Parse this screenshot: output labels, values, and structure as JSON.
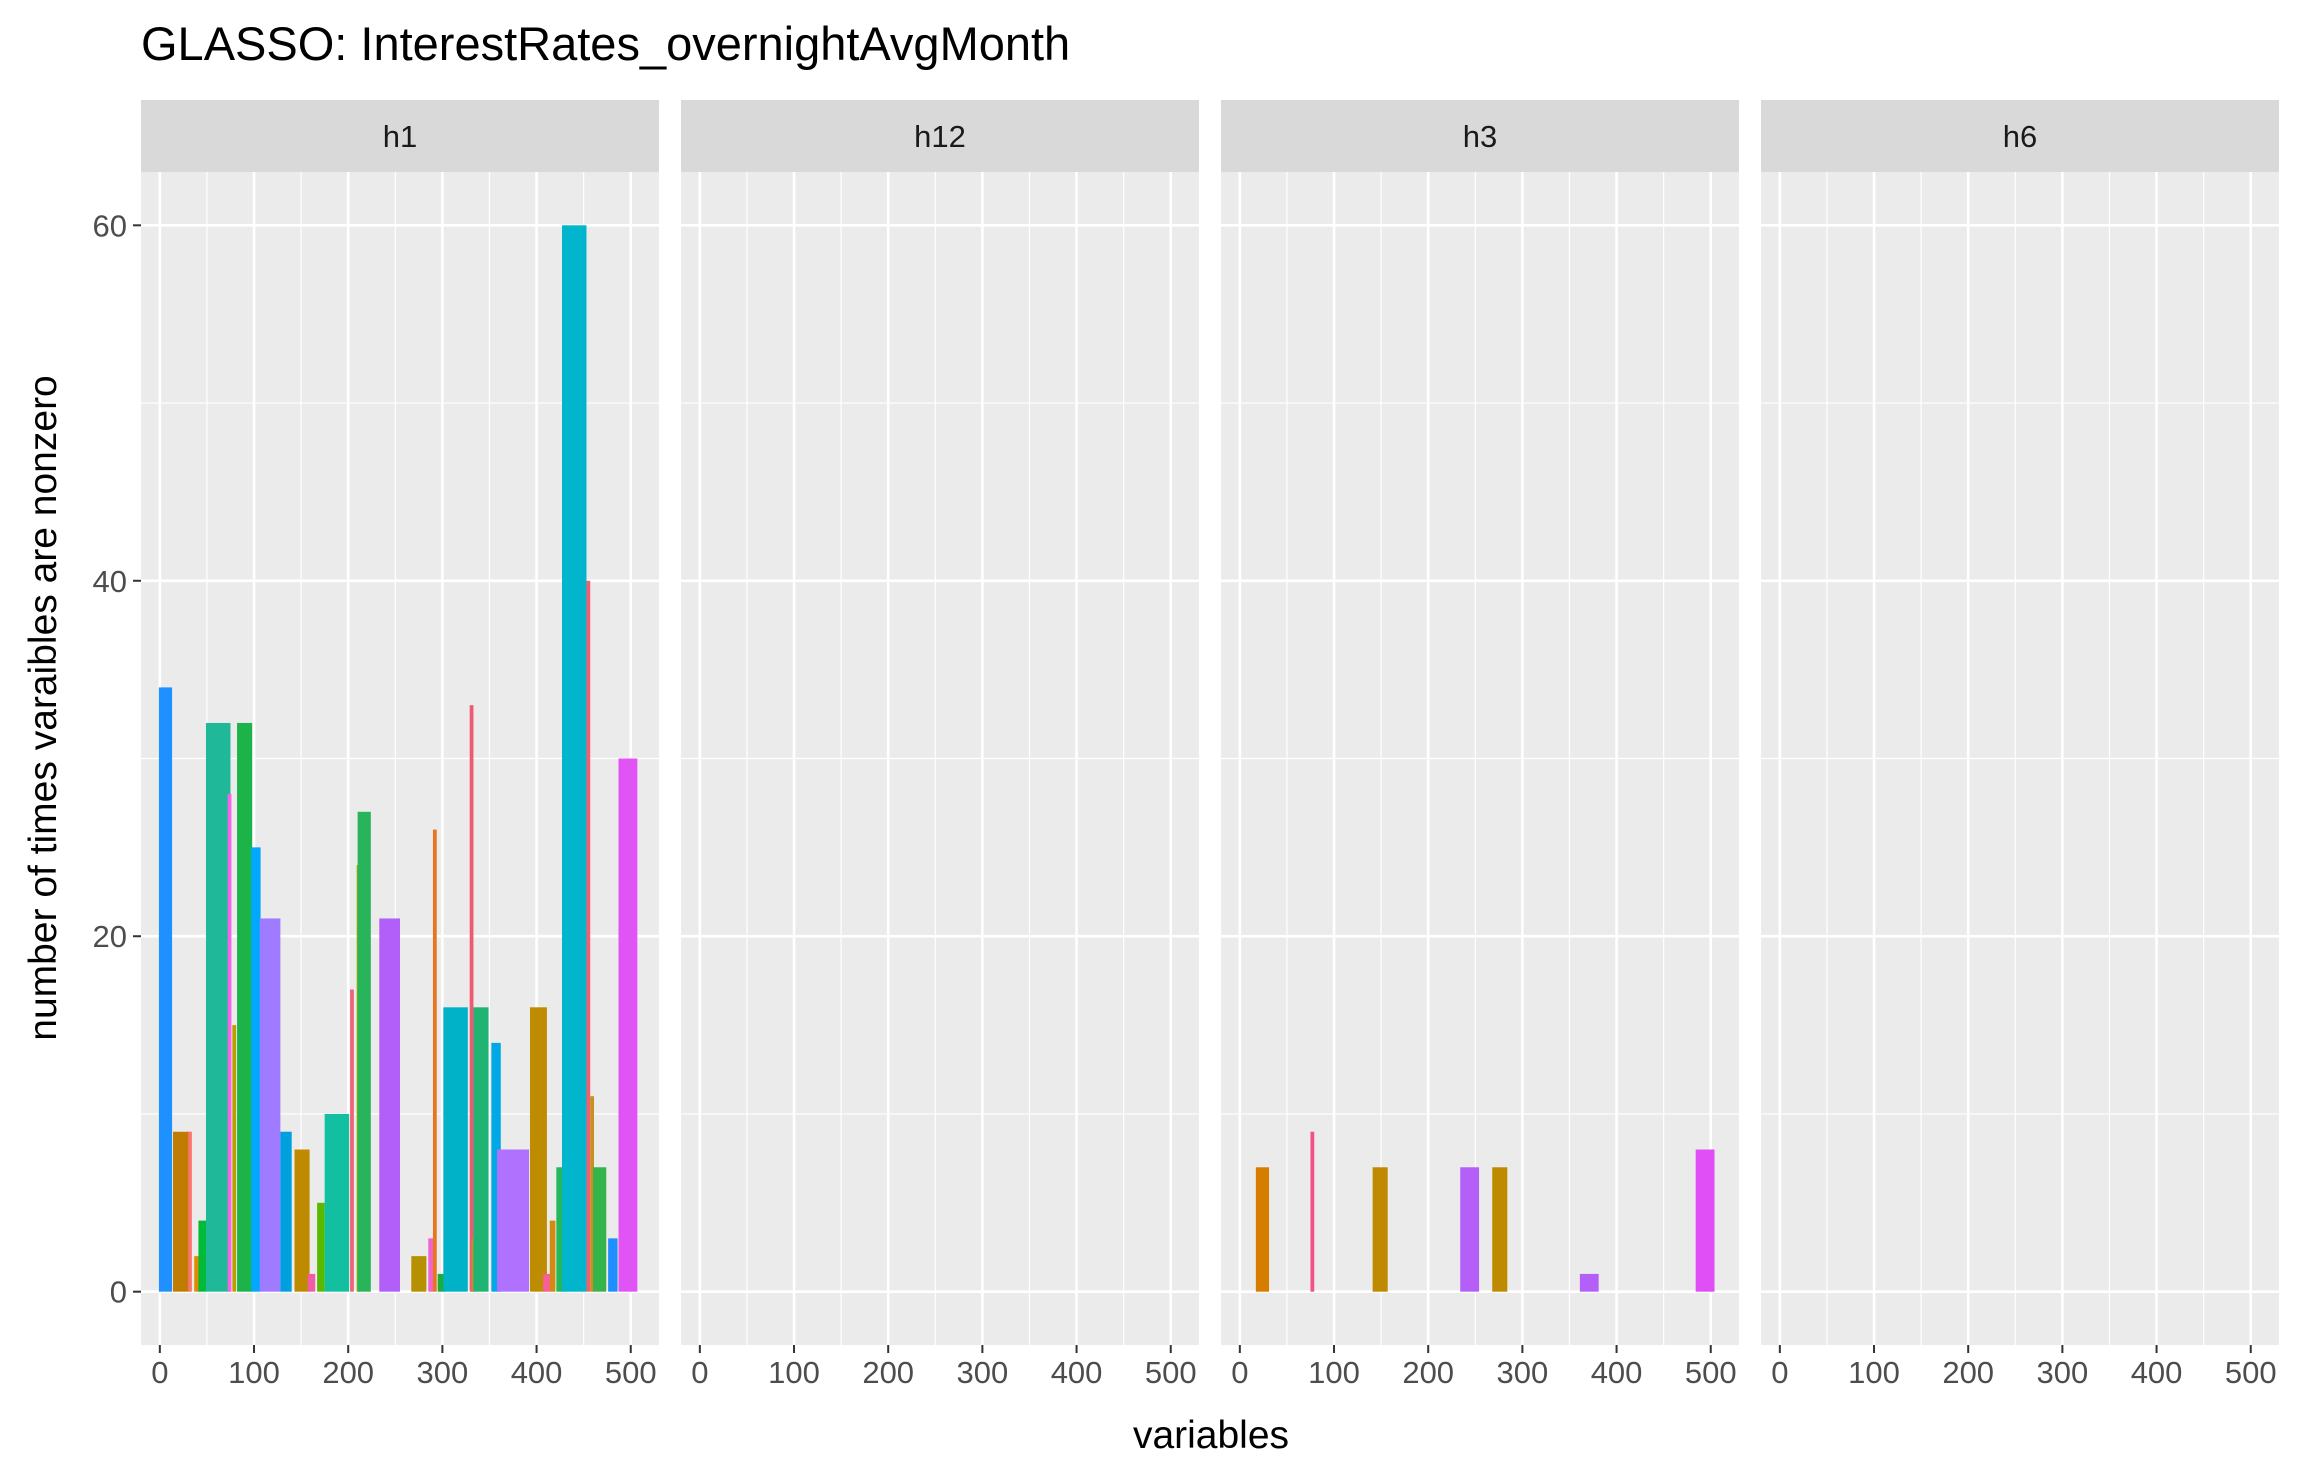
{
  "chart_data": {
    "type": "bar",
    "title": "GLASSO: InterestRates_overnightAvgMonth",
    "xlabel": "variables",
    "ylabel": "number of times varaibles are nonzero",
    "xlim": [
      -20,
      530
    ],
    "ylim": [
      -3,
      63
    ],
    "x_ticks": [
      0,
      100,
      200,
      300,
      400,
      500
    ],
    "x_tick_labels": [
      "0",
      "100",
      "200",
      "300",
      "400",
      "500"
    ],
    "y_ticks": [
      0,
      20,
      40,
      60
    ],
    "y_tick_labels": [
      "0",
      "20",
      "40",
      "60"
    ],
    "grid": true,
    "legend": "none",
    "facets": [
      {
        "label": "h1",
        "bars": [
          {
            "x": 6,
            "width": 14,
            "y": 34,
            "color": "#1e90ff"
          },
          {
            "x": 23,
            "width": 18,
            "y": 9,
            "color": "#c07c00"
          },
          {
            "x": 32,
            "width": 4,
            "y": 9,
            "color": "#f8766d"
          },
          {
            "x": 39,
            "width": 5,
            "y": 2,
            "color": "#de8c00"
          },
          {
            "x": 45,
            "width": 8,
            "y": 4,
            "color": "#00ba38"
          },
          {
            "x": 62,
            "width": 26,
            "y": 32,
            "color": "#1fb99a"
          },
          {
            "x": 74,
            "width": 4,
            "y": 28,
            "color": "#f564e3"
          },
          {
            "x": 79,
            "width": 4,
            "y": 15,
            "color": "#b79f00"
          },
          {
            "x": 90,
            "width": 16,
            "y": 32,
            "color": "#1cb349"
          },
          {
            "x": 102,
            "width": 10,
            "y": 25,
            "color": "#00a9ff"
          },
          {
            "x": 117,
            "width": 22,
            "y": 21,
            "color": "#9e7bff"
          },
          {
            "x": 134,
            "width": 12,
            "y": 9,
            "color": "#00a0e0"
          },
          {
            "x": 151,
            "width": 16,
            "y": 8,
            "color": "#c08a00"
          },
          {
            "x": 161,
            "width": 8,
            "y": 1,
            "color": "#f05ca8"
          },
          {
            "x": 171,
            "width": 8,
            "y": 5,
            "color": "#5ab800"
          },
          {
            "x": 188,
            "width": 26,
            "y": 10,
            "color": "#12bfa0"
          },
          {
            "x": 204,
            "width": 4,
            "y": 17,
            "color": "#f0627a"
          },
          {
            "x": 211,
            "width": 4,
            "y": 24,
            "color": "#8fb000"
          },
          {
            "x": 217,
            "width": 14,
            "y": 27,
            "color": "#28b45a"
          },
          {
            "x": 244,
            "width": 22,
            "y": 21,
            "color": "#b25ef9"
          },
          {
            "x": 275,
            "width": 16,
            "y": 2,
            "color": "#b69000"
          },
          {
            "x": 288,
            "width": 6,
            "y": 3,
            "color": "#f064d0"
          },
          {
            "x": 292,
            "width": 4,
            "y": 26,
            "color": "#e8741c"
          },
          {
            "x": 299,
            "width": 8,
            "y": 1,
            "color": "#1aae3a"
          },
          {
            "x": 314,
            "width": 26,
            "y": 16,
            "color": "#00b2c8"
          },
          {
            "x": 331,
            "width": 4,
            "y": 33,
            "color": "#ef5a72"
          },
          {
            "x": 333,
            "width": 4,
            "y": 3,
            "color": "#c0902a"
          },
          {
            "x": 341,
            "width": 16,
            "y": 16,
            "color": "#1fb474"
          },
          {
            "x": 357,
            "width": 10,
            "y": 14,
            "color": "#00a8e6"
          },
          {
            "x": 375,
            "width": 34,
            "y": 8,
            "color": "#b071ff"
          },
          {
            "x": 402,
            "width": 18,
            "y": 16,
            "color": "#bd8c00"
          },
          {
            "x": 411,
            "width": 8,
            "y": 1,
            "color": "#f85e9a"
          },
          {
            "x": 417,
            "width": 6,
            "y": 4,
            "color": "#d38a10"
          },
          {
            "x": 425,
            "width": 8,
            "y": 7,
            "color": "#25b85a"
          },
          {
            "x": 440,
            "width": 26,
            "y": 60,
            "color": "#00b5cc"
          },
          {
            "x": 455,
            "width": 4,
            "y": 40,
            "color": "#f06070"
          },
          {
            "x": 459,
            "width": 4,
            "y": 11,
            "color": "#c8901c"
          },
          {
            "x": 467,
            "width": 14,
            "y": 7,
            "color": "#36b44c"
          },
          {
            "x": 481,
            "width": 10,
            "y": 3,
            "color": "#1f8fff"
          },
          {
            "x": 497,
            "width": 20,
            "y": 30,
            "color": "#e253f5"
          }
        ]
      },
      {
        "label": "h12",
        "bars": []
      },
      {
        "label": "h3",
        "bars": [
          {
            "x": 24,
            "width": 14,
            "y": 7,
            "color": "#d67d00"
          },
          {
            "x": 77,
            "width": 4,
            "y": 9,
            "color": "#f3508e"
          },
          {
            "x": 149,
            "width": 16,
            "y": 7,
            "color": "#c08a00"
          },
          {
            "x": 244,
            "width": 20,
            "y": 7,
            "color": "#b45ff8"
          },
          {
            "x": 276,
            "width": 16,
            "y": 7,
            "color": "#bd8a00"
          },
          {
            "x": 371,
            "width": 20,
            "y": 1,
            "color": "#b45ff8"
          },
          {
            "x": 494,
            "width": 20,
            "y": 8,
            "color": "#e04ef5"
          }
        ]
      },
      {
        "label": "h6",
        "bars": []
      }
    ]
  }
}
